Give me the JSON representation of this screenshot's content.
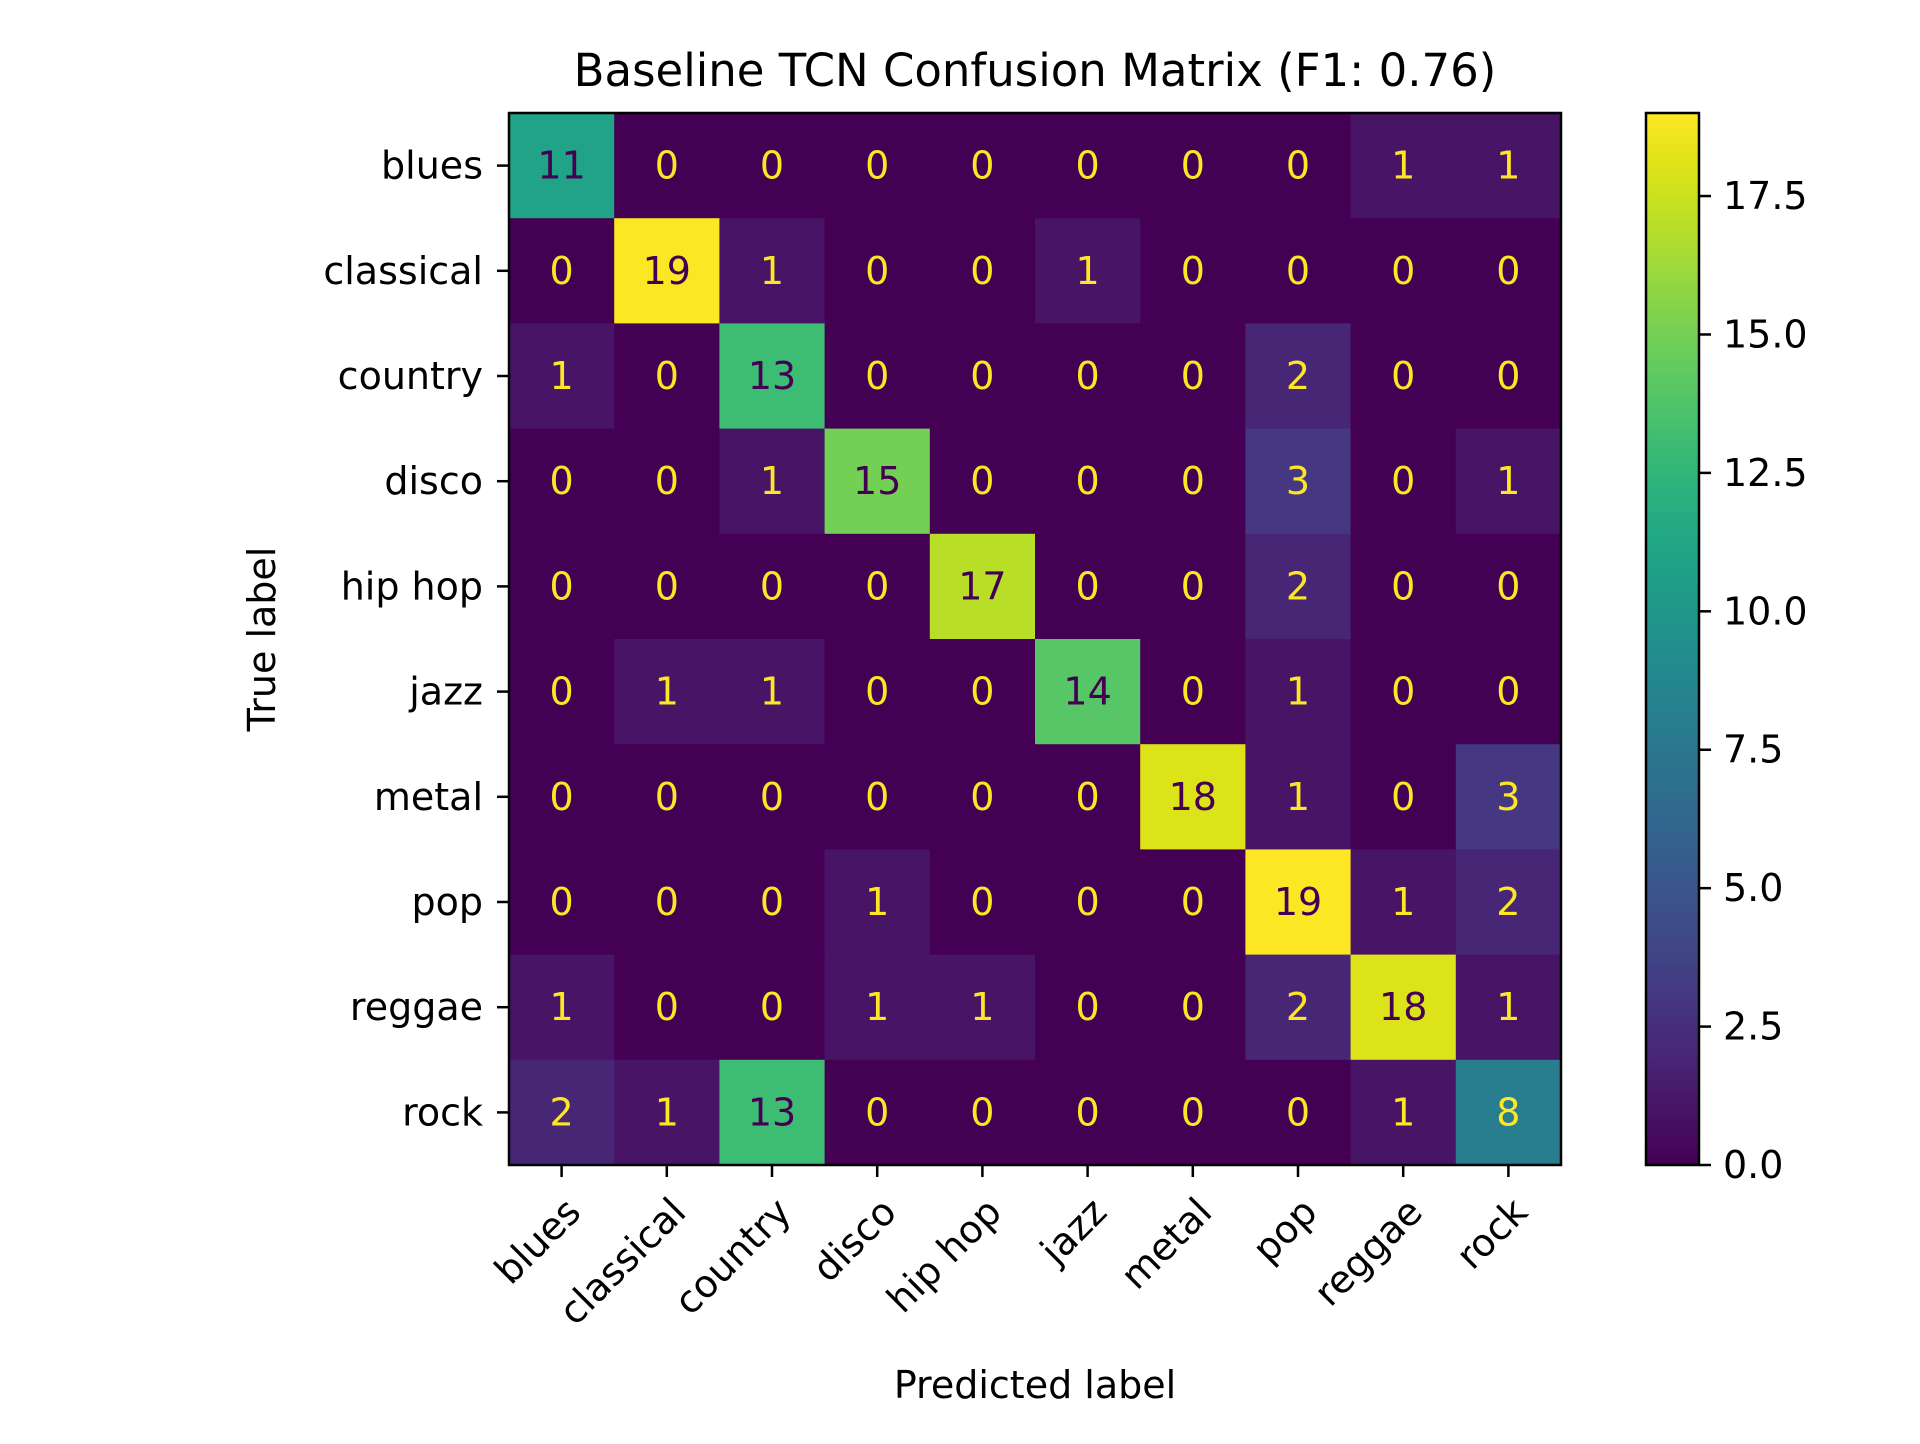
{
  "chart_data": {
    "type": "heatmap",
    "title": "Baseline TCN Confusion Matrix (F1: 0.76)",
    "xlabel": "Predicted label",
    "ylabel": "True label",
    "labels": [
      "blues",
      "classical",
      "country",
      "disco",
      "hip hop",
      "jazz",
      "metal",
      "pop",
      "reggae",
      "rock"
    ],
    "matrix": [
      [
        11,
        0,
        0,
        0,
        0,
        0,
        0,
        0,
        1,
        1
      ],
      [
        0,
        19,
        1,
        0,
        0,
        1,
        0,
        0,
        0,
        0
      ],
      [
        1,
        0,
        13,
        0,
        0,
        0,
        0,
        2,
        0,
        0
      ],
      [
        0,
        0,
        1,
        15,
        0,
        0,
        0,
        3,
        0,
        1
      ],
      [
        0,
        0,
        0,
        0,
        17,
        0,
        0,
        2,
        0,
        0
      ],
      [
        0,
        1,
        1,
        0,
        0,
        14,
        0,
        1,
        0,
        0
      ],
      [
        0,
        0,
        0,
        0,
        0,
        0,
        18,
        1,
        0,
        3
      ],
      [
        0,
        0,
        0,
        1,
        0,
        0,
        0,
        19,
        1,
        2
      ],
      [
        1,
        0,
        0,
        1,
        1,
        0,
        0,
        2,
        18,
        1
      ],
      [
        2,
        1,
        13,
        0,
        0,
        0,
        0,
        0,
        1,
        8
      ]
    ],
    "colormap": "viridis",
    "vmin": 0,
    "vmax": 19,
    "colorbar_ticks": [
      0.0,
      2.5,
      5.0,
      7.5,
      10.0,
      12.5,
      15.0,
      17.5
    ],
    "colorbar_tick_labels": [
      "0.0",
      "2.5",
      "5.0",
      "7.5",
      "10.0",
      "12.5",
      "15.0",
      "17.5"
    ],
    "text_color_dark": "#440154",
    "text_color_light": "#fde725",
    "grid": false,
    "legend": "colorbar-right"
  }
}
